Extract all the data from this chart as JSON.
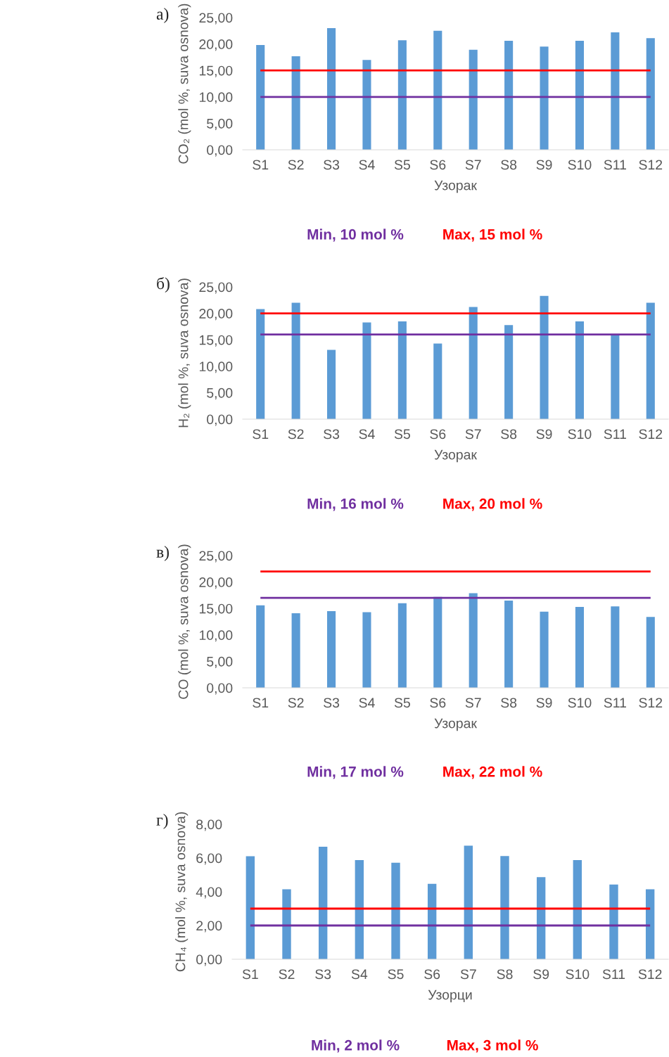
{
  "chart_data": [
    {
      "type": "bar",
      "title": "а)",
      "xlabel": "Узорак",
      "ylabel": "CO₂ (mol %, suva osnova)",
      "color": "#5b9bd5",
      "categories": [
        "S1",
        "S2",
        "S3",
        "S4",
        "S5",
        "S6",
        "S7",
        "S8",
        "S9",
        "S10",
        "S11",
        "S12"
      ],
      "values": [
        19.8,
        17.7,
        23.0,
        17.0,
        20.7,
        22.5,
        18.9,
        20.6,
        19.5,
        20.6,
        22.2,
        21.1
      ],
      "ylim": [
        0,
        25
      ],
      "yticks": [
        {
          "value": 0,
          "label": "0,00"
        },
        {
          "value": 5,
          "label": "5,00"
        },
        {
          "value": 10,
          "label": "10,00"
        },
        {
          "value": 15,
          "label": "15,00"
        },
        {
          "value": 20,
          "label": "20,00"
        },
        {
          "value": 25,
          "label": "25,00"
        }
      ],
      "ref_lines": [
        {
          "axis": "y",
          "value": 10,
          "label": "Min, 10 mol %",
          "color": "#7030a0"
        },
        {
          "axis": "y",
          "value": 15,
          "label": "Max, 15 mol %",
          "color": "#ff0000"
        }
      ]
    },
    {
      "type": "bar",
      "title": "б)",
      "xlabel": "Узорак",
      "ylabel": "H₂ (mol %, suva osnova)",
      "color": "#5b9bd5",
      "categories": [
        "S1",
        "S2",
        "S3",
        "S4",
        "S5",
        "S6",
        "S7",
        "S8",
        "S9",
        "S10",
        "S11",
        "S12"
      ],
      "values": [
        20.8,
        22.0,
        13.1,
        18.3,
        18.5,
        14.3,
        21.2,
        17.8,
        23.3,
        18.5,
        15.9,
        22.0
      ],
      "ylim": [
        0,
        25
      ],
      "yticks": [
        {
          "value": 0,
          "label": "0,00"
        },
        {
          "value": 5,
          "label": "5,00"
        },
        {
          "value": 10,
          "label": "10,00"
        },
        {
          "value": 15,
          "label": "15,00"
        },
        {
          "value": 20,
          "label": "20,00"
        },
        {
          "value": 25,
          "label": "25,00"
        }
      ],
      "ref_lines": [
        {
          "axis": "y",
          "value": 16,
          "label": "Min, 16 mol %",
          "color": "#7030a0"
        },
        {
          "axis": "y",
          "value": 20,
          "label": "Max, 20 mol %",
          "color": "#ff0000"
        }
      ]
    },
    {
      "type": "bar",
      "title": "в)",
      "xlabel": "Узорак",
      "ylabel": "CO (mol %, suva osnova)",
      "color": "#5b9bd5",
      "categories": [
        "S1",
        "S2",
        "S3",
        "S4",
        "S5",
        "S6",
        "S7",
        "S8",
        "S9",
        "S10",
        "S11",
        "S12"
      ],
      "values": [
        15.6,
        14.1,
        14.5,
        14.3,
        16.0,
        17.2,
        17.9,
        16.5,
        14.4,
        15.3,
        15.4,
        13.4
      ],
      "ylim": [
        0,
        25
      ],
      "yticks": [
        {
          "value": 0,
          "label": "0,00"
        },
        {
          "value": 5,
          "label": "5,00"
        },
        {
          "value": 10,
          "label": "10,00"
        },
        {
          "value": 15,
          "label": "15,00"
        },
        {
          "value": 20,
          "label": "20,00"
        },
        {
          "value": 25,
          "label": "25,00"
        }
      ],
      "ref_lines": [
        {
          "axis": "y",
          "value": 17,
          "label": "Min, 17 mol %",
          "color": "#7030a0"
        },
        {
          "axis": "y",
          "value": 22,
          "label": "Max, 22 mol %",
          "color": "#ff0000"
        }
      ]
    },
    {
      "type": "bar",
      "title": "г)",
      "xlabel": "Узорци",
      "ylabel": "CH₄ (mol %, suva osnova)",
      "color": "#5b9bd5",
      "categories": [
        "S1",
        "S2",
        "S3",
        "S4",
        "S5",
        "S6",
        "S7",
        "S8",
        "S9",
        "S10",
        "S11",
        "S12"
      ],
      "values": [
        6.1,
        4.15,
        6.67,
        5.87,
        5.72,
        4.47,
        6.73,
        6.11,
        4.86,
        5.87,
        4.43,
        4.15
      ],
      "ylim": [
        0,
        8
      ],
      "yticks": [
        {
          "value": 0,
          "label": "0,00"
        },
        {
          "value": 2,
          "label": "2,00"
        },
        {
          "value": 4,
          "label": "4,00"
        },
        {
          "value": 6,
          "label": "6,00"
        },
        {
          "value": 8,
          "label": "8,00"
        }
      ],
      "ref_lines": [
        {
          "axis": "y",
          "value": 2,
          "label": "Min, 2 mol %",
          "color": "#7030a0"
        },
        {
          "axis": "y",
          "value": 3,
          "label": "Max, 3 mol %",
          "color": "#ff0000"
        }
      ]
    }
  ]
}
